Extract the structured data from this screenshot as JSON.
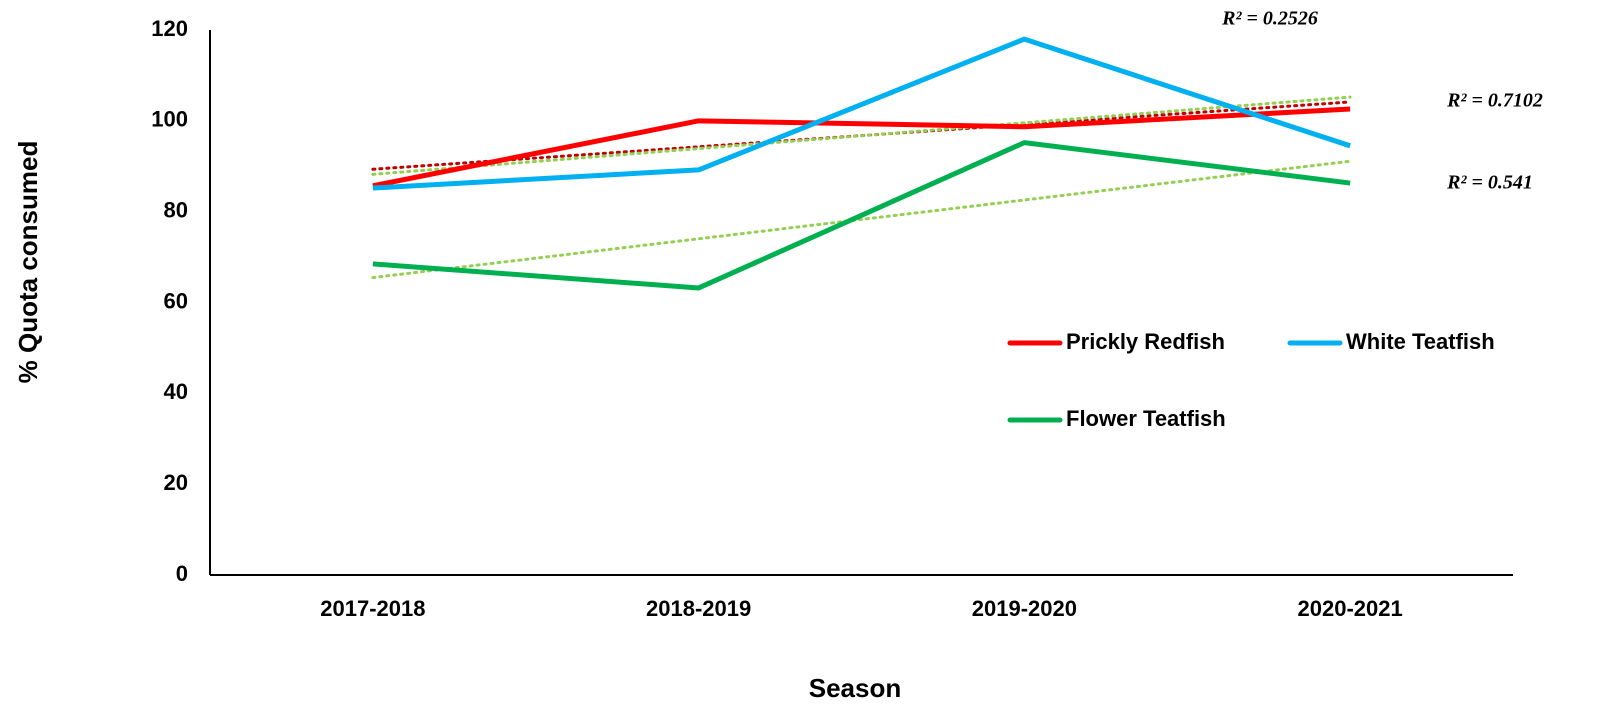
{
  "chart_data": {
    "type": "line",
    "x_label": "Season",
    "y_label": "% Quota consumed",
    "categories": [
      "2017-2018",
      "2018-2019",
      "2019-2020",
      "2020-2021"
    ],
    "ylim": [
      0,
      120
    ],
    "yticks": [
      0,
      20,
      40,
      60,
      80,
      100,
      120
    ],
    "grid": false,
    "series": [
      {
        "name": "Prickly Redfish",
        "color": "#ff0000",
        "values": [
          85.7,
          100,
          98.7,
          102.6
        ],
        "trendline": {
          "type": "linear",
          "color": "#c00000",
          "r2_label": "R² = 0.7102"
        }
      },
      {
        "name": "White Teatfish",
        "color": "#00b0f0",
        "values": [
          85.2,
          89.2,
          118,
          94.5
        ],
        "trendline": {
          "type": "linear",
          "color": "#92d050",
          "r2_label": "R² = 0.2526"
        }
      },
      {
        "name": "Flower Teatfish",
        "color": "#00b050",
        "values": [
          68.5,
          63.2,
          95.2,
          86.3
        ],
        "trendline": {
          "type": "linear",
          "color": "#92d050",
          "r2_label": "R² = 0.541"
        }
      }
    ]
  }
}
